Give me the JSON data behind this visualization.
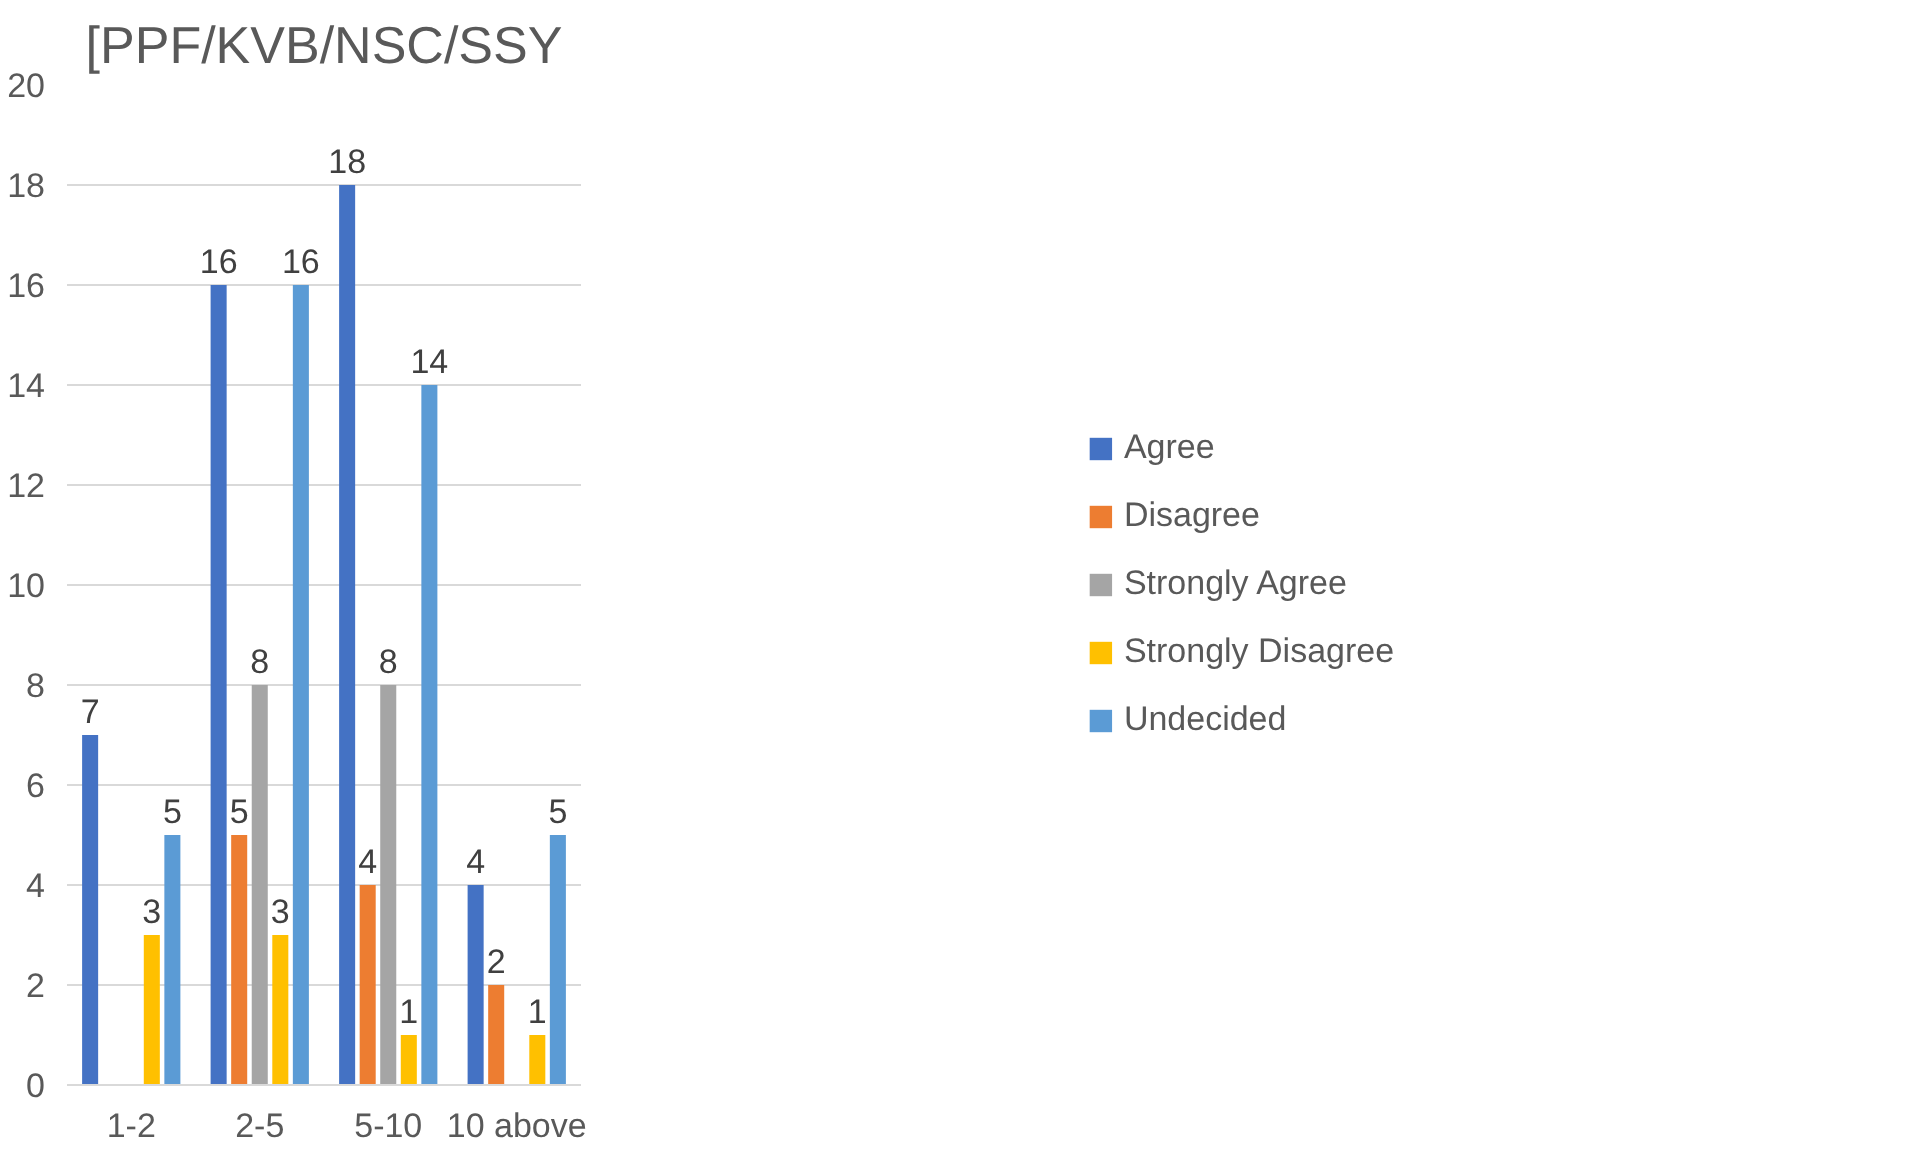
{
  "chart_data": {
    "type": "bar",
    "title": "[PPF/KVB/NSC/SSY",
    "categories": [
      "1-2",
      "2-5",
      "5-10",
      "10 above"
    ],
    "series": [
      {
        "name": "Agree",
        "color": "#4472c4",
        "values": [
          7,
          16,
          18,
          4
        ]
      },
      {
        "name": "Disagree",
        "color": "#ed7d31",
        "values": [
          null,
          5,
          4,
          2
        ]
      },
      {
        "name": "Strongly Agree",
        "color": "#a5a5a5",
        "values": [
          null,
          8,
          8,
          null
        ]
      },
      {
        "name": "Strongly Disagree",
        "color": "#ffc000",
        "values": [
          3,
          3,
          1,
          1
        ]
      },
      {
        "name": "Undecided",
        "color": "#5b9bd5",
        "values": [
          5,
          16,
          14,
          5
        ]
      }
    ],
    "ylim": [
      0,
      20
    ],
    "yticks": [
      0,
      2,
      4,
      6,
      8,
      10,
      12,
      14,
      16,
      18,
      20
    ],
    "grid": "y",
    "legend": "right",
    "data_labels": true
  }
}
